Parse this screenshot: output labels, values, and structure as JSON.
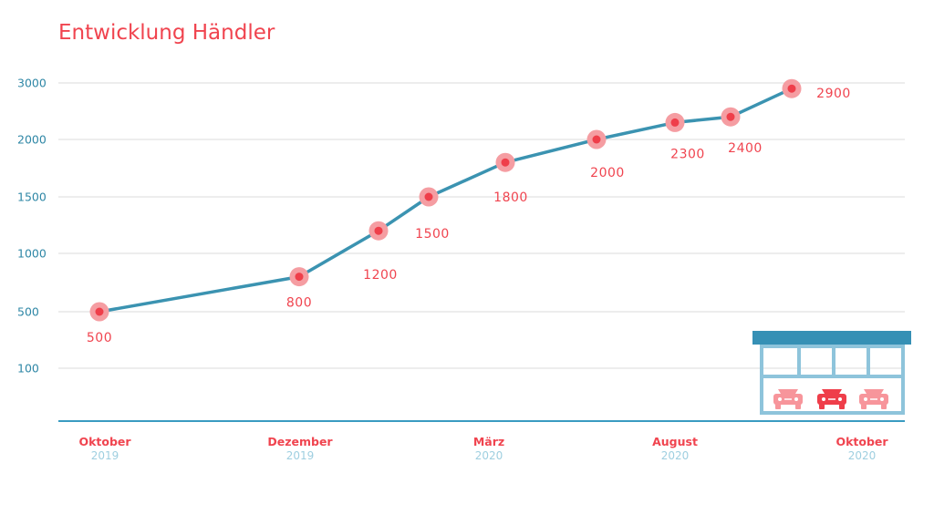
{
  "colors": {
    "accent": "#f0444f",
    "line": "#3b93b1",
    "marker_outer": "#f59da2",
    "marker_inner": "#ef3e4a",
    "grid": "#e7e7e7",
    "axis": "#3a9bc1",
    "ytick": "#2f87a6",
    "year": "#9fcfe0",
    "garage_frame": "#8ec4db",
    "garage_roof": "#3690b5",
    "car_light": "#f7959b",
    "car_dark": "#ef3e4a"
  },
  "chart_data": {
    "type": "line",
    "title": "Entwicklung Händler",
    "xlabel": "",
    "ylabel": "",
    "y_ticks": [
      {
        "value": 100,
        "label": "100"
      },
      {
        "value": 500,
        "label": "500"
      },
      {
        "value": 1000,
        "label": "1000"
      },
      {
        "value": 1500,
        "label": "1500"
      },
      {
        "value": 2000,
        "label": "2000"
      },
      {
        "value": 3000,
        "label": "3000"
      }
    ],
    "y_scale_note": "non-uniform axis: 100–2000 evenly spaced steps, 3000 at next step",
    "x_ticks": [
      {
        "date": "2019-10",
        "month": "Oktober",
        "year": "2019"
      },
      {
        "date": "2019-12",
        "month": "Dezember",
        "year": "2019"
      },
      {
        "date": "2020-03",
        "month": "März",
        "year": "2020"
      },
      {
        "date": "2020-08",
        "month": "August",
        "year": "2020"
      },
      {
        "date": "2020-10",
        "month": "Oktober",
        "year": "2020"
      }
    ],
    "x_range": [
      "2019-10",
      "2020-10"
    ],
    "grid": true,
    "legend": "none",
    "series": [
      {
        "points": [
          {
            "date": "2019-10",
            "value": 500,
            "label": "500"
          },
          {
            "date": "2019-12",
            "value": 800,
            "label": "800"
          },
          {
            "date": "2020-01",
            "value": 1200,
            "label": "1200"
          },
          {
            "date": "2020-02",
            "value": 1500,
            "label": "1500"
          },
          {
            "date": "2020-03",
            "value": 1800,
            "label": "1800"
          },
          {
            "date": "2020-05",
            "value": 2000,
            "label": "2000"
          },
          {
            "date": "2020-07",
            "value": 2300,
            "label": "2300"
          },
          {
            "date": "2020-08",
            "value": 2400,
            "label": "2400"
          },
          {
            "date": "2020-09",
            "value": 2900,
            "label": "2900"
          }
        ]
      }
    ]
  },
  "illustration": {
    "icon": "garage-icon",
    "cars": [
      "car-icon",
      "car-icon",
      "car-icon"
    ]
  }
}
